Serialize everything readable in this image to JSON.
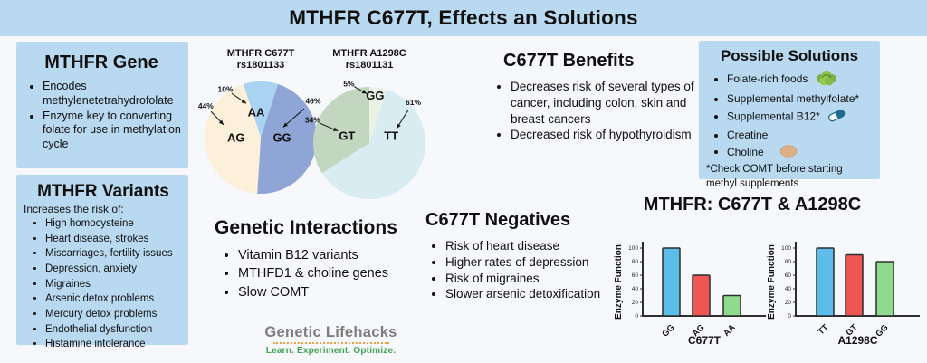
{
  "page": {
    "title": "MTHFR C677T, Effects an Solutions"
  },
  "gene_box": {
    "title": "MTHFR Gene",
    "bullets": [
      "Encodes methylenetetrahydrofolate",
      "Enzyme key to converting folate for use in methylation cycle"
    ]
  },
  "variants_box": {
    "title": "MTHFR Variants",
    "subtitle": "Increases the risk of:",
    "bullets": [
      "High homocysteine",
      "Heart disease, strokes",
      "Miscarriages, fertility issues",
      "Depression, anxiety",
      "Migraines",
      "Arsenic detox problems",
      "Mercury detox problems",
      "Endothelial dysfunction",
      "Histamine intolerance"
    ]
  },
  "benefits": {
    "title": "C677T Benefits",
    "bullets": [
      "Decreases risk of several types of cancer, including colon, skin and breast cancers",
      "Decreased risk of hypothyroidism"
    ]
  },
  "solutions": {
    "title": "Possible Solutions",
    "items": [
      {
        "text": "Folate-rich foods",
        "icon": "lettuce-icon"
      },
      {
        "text": "Supplemental methylfolate*",
        "icon": ""
      },
      {
        "text": "Supplemental B12*",
        "icon": "pill-icon"
      },
      {
        "text": "Creatine",
        "icon": ""
      },
      {
        "text": "Choline",
        "icon": "egg-icon"
      }
    ],
    "note": "*Check COMT before starting methyl supplements"
  },
  "interactions": {
    "title": "Genetic Interactions",
    "bullets": [
      "Vitamin B12 variants",
      "MTHFD1 & choline genes",
      "Slow COMT"
    ]
  },
  "negatives": {
    "title": "C677T Negatives",
    "bullets": [
      "Risk of heart disease",
      "Higher rates of depression",
      "Risk of migraines",
      "Slower arsenic detoxification"
    ]
  },
  "bar_section_title": "MTHFR: C677T &  A1298C",
  "logo": {
    "name": "Genetic Lifehacks",
    "tagline": "Learn. Experiment. Optimize."
  },
  "colors": {
    "panel_blue": "#b9d9f1",
    "background": "#f7f8fc",
    "bar_blue": "#5bbde8",
    "bar_red": "#ef5552",
    "bar_green": "#90da8e"
  },
  "chart_data": [
    {
      "type": "pie",
      "title": "MTHFR C677T",
      "subtitle": "rs1801133",
      "start_deg": -18,
      "slices": [
        {
          "label": "AA",
          "value": 10,
          "pct": "10%",
          "color": "#a9d3f1",
          "layout": {
            "name_at": [
              -10,
              0.46
            ],
            "pct_at": [
              -36,
              1.07
            ],
            "tip_at": [
              -23,
              0.66
            ]
          }
        },
        {
          "label": "GG",
          "value": 46,
          "pct": "46%",
          "color": "#8fa5d6",
          "layout": {
            "name_at": [
              90,
              0.38
            ],
            "pct_at": [
              55,
              1.14
            ],
            "tip_at": [
              65,
              0.44
            ]
          }
        },
        {
          "label": "AG",
          "value": 44,
          "pct": "44%",
          "color": "#fcf0da",
          "layout": {
            "name_at": [
              -90,
              0.44
            ],
            "pct_at": [
              -60,
              1.13
            ],
            "tip_at": [
              -71,
              0.7
            ]
          }
        }
      ]
    },
    {
      "type": "pie",
      "title": "MTHFR A1298C",
      "subtitle": "rs1801131",
      "start_deg": 0,
      "slices": [
        {
          "label": "GG",
          "value": 5,
          "pct": "5%",
          "color": "#eaf2e6",
          "layout": {
            "name_at": [
              7,
              0.85
            ],
            "pct_at": [
              -19,
              1.12
            ],
            "tip_at": [
              -3,
              0.88
            ]
          }
        },
        {
          "label": "TT",
          "value": 61,
          "pct": "61%",
          "color": "#d8ecf1",
          "layout": {
            "name_at": [
              72,
              0.41
            ],
            "pct_at": [
              47,
              1.07
            ],
            "tip_at": [
              62,
              0.55
            ]
          }
        },
        {
          "label": "GT",
          "value": 34,
          "pct": "34%",
          "color": "#c3d7c0",
          "layout": {
            "name_at": [
              -72,
              0.42
            ],
            "pct_at": [
              -68,
              1.09
            ],
            "tip_at": [
              -69,
              0.6
            ]
          }
        }
      ]
    },
    {
      "type": "bar",
      "categories": [
        "GG",
        "AG",
        "AA"
      ],
      "values": [
        100,
        60,
        30
      ],
      "colors": [
        "#5bbde8",
        "#ef5552",
        "#90da8e"
      ],
      "xlabel": "C677T",
      "ylabel": "Enzyme Function",
      "yticks": [
        0,
        20,
        40,
        60,
        80,
        100
      ],
      "ylim": [
        0,
        100
      ]
    },
    {
      "type": "bar",
      "categories": [
        "TT",
        "GT",
        "GG"
      ],
      "values": [
        100,
        90,
        80
      ],
      "colors": [
        "#5bbde8",
        "#ef5552",
        "#90da8e"
      ],
      "xlabel": "A1298C",
      "ylabel": "Enzyme Function",
      "yticks": [
        0,
        20,
        40,
        60,
        80,
        100
      ],
      "ylim": [
        0,
        100
      ]
    }
  ]
}
